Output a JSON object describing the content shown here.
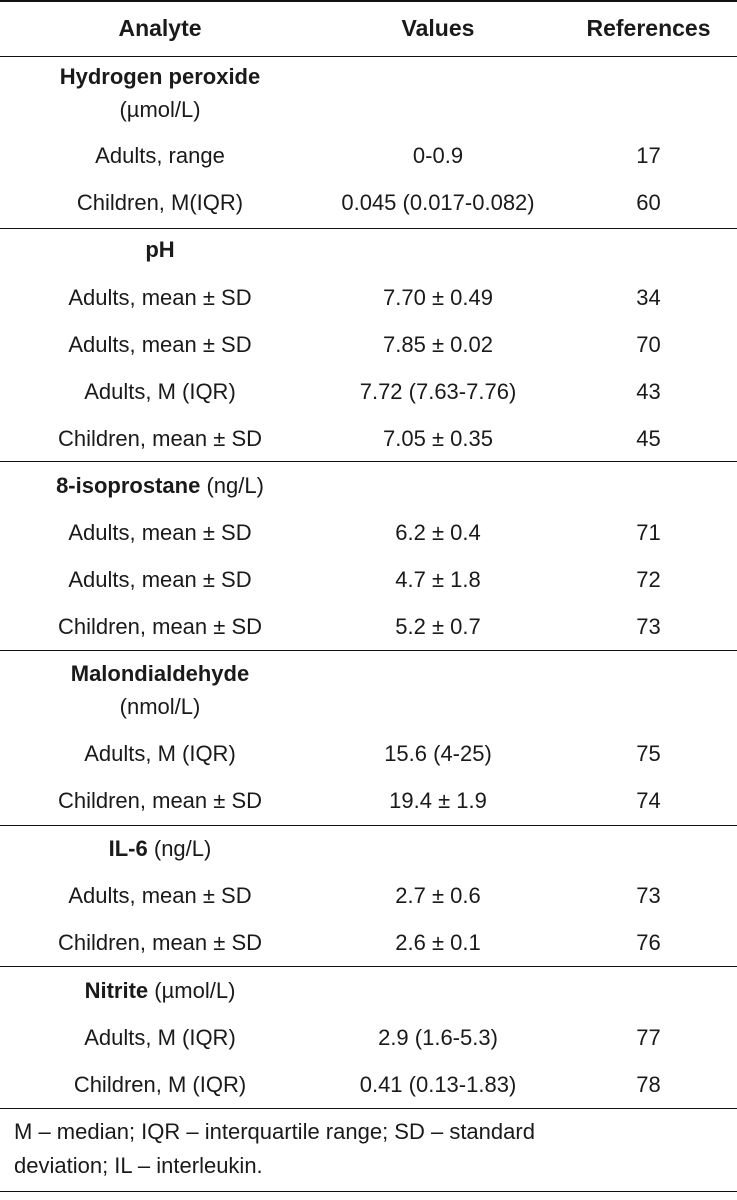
{
  "header": {
    "analyte": "Analyte",
    "values": "Values",
    "references": "References"
  },
  "groups": [
    {
      "name": "Hydrogen peroxide",
      "unit": "(µmol/L)",
      "rows": [
        {
          "label": "Adults, range",
          "value": "0-0.9",
          "ref": "17"
        },
        {
          "label": "Children, M(IQR)",
          "value": "0.045 (0.017-0.082)",
          "ref": "60"
        }
      ]
    },
    {
      "name": "pH",
      "unit": "",
      "rows": [
        {
          "label": "Adults, mean ± SD",
          "value": "7.70 ± 0.49",
          "ref": "34"
        },
        {
          "label": "Adults, mean ± SD",
          "value": "7.85 ± 0.02",
          "ref": "70"
        },
        {
          "label": "Adults, M (IQR)",
          "value": "7.72 (7.63-7.76)",
          "ref": "43"
        },
        {
          "label": "Children, mean ± SD",
          "value": "7.05 ± 0.35",
          "ref": "45"
        }
      ]
    },
    {
      "name": "8-isoprostane",
      "unit": "(ng/L)",
      "rows": [
        {
          "label": "Adults, mean ± SD",
          "value": "6.2 ± 0.4",
          "ref": "71"
        },
        {
          "label": "Adults, mean ± SD",
          "value": "4.7 ± 1.8",
          "ref": "72"
        },
        {
          "label": "Children, mean ± SD",
          "value": "5.2 ± 0.7",
          "ref": "73"
        }
      ]
    },
    {
      "name": "Malondialdehyde",
      "unit": "(nmol/L)",
      "rows": [
        {
          "label": "Adults, M (IQR)",
          "value": "15.6 (4-25)",
          "ref": "75"
        },
        {
          "label": "Children, mean ± SD",
          "value": "19.4 ± 1.9",
          "ref": "74"
        }
      ]
    },
    {
      "name": "IL-6",
      "unit": "(ng/L)",
      "rows": [
        {
          "label": "Adults, mean ± SD",
          "value": "2.7 ± 0.6",
          "ref": "73"
        },
        {
          "label": "Children, mean ± SD",
          "value": "2.6 ± 0.1",
          "ref": "76"
        }
      ]
    },
    {
      "name": "Nitrite",
      "unit": "(µmol/L)",
      "rows": [
        {
          "label": "Adults, M (IQR)",
          "value": "2.9 (1.6-5.3)",
          "ref": "77"
        },
        {
          "label": "Children, M (IQR)",
          "value": "0.41 (0.13-1.83)",
          "ref": "78"
        }
      ]
    }
  ],
  "footnote": {
    "line1": "M – median; IQR – interquartile range; SD – standard",
    "line2": "deviation; IL – interleukin."
  }
}
